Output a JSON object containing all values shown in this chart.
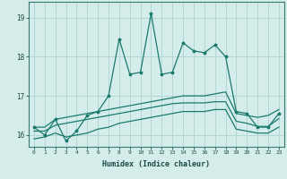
{
  "xlabel": "Humidex (Indice chaleur)",
  "background_color": "#d4ecea",
  "grid_color": "#b2d8d4",
  "line_color": "#1a7a6e",
  "xlim": [
    -0.5,
    23.5
  ],
  "ylim": [
    15.7,
    19.4
  ],
  "yticks": [
    16,
    17,
    18,
    19
  ],
  "xticks": [
    0,
    1,
    2,
    3,
    4,
    5,
    6,
    7,
    8,
    9,
    10,
    11,
    12,
    13,
    14,
    15,
    16,
    17,
    18,
    19,
    20,
    21,
    22,
    23
  ],
  "series": {
    "main": {
      "x": [
        0,
        1,
        2,
        3,
        4,
        5,
        6,
        7,
        8,
        9,
        10,
        11,
        12,
        13,
        14,
        15,
        16,
        17,
        18,
        19,
        20,
        21,
        22,
        23
      ],
      "y": [
        16.2,
        16.0,
        16.4,
        15.85,
        16.1,
        16.5,
        16.6,
        17.0,
        18.45,
        17.55,
        17.6,
        19.1,
        17.55,
        17.6,
        18.35,
        18.15,
        18.1,
        18.3,
        18.0,
        16.6,
        16.55,
        16.2,
        16.2,
        16.55
      ]
    },
    "upper": {
      "x": [
        0,
        1,
        2,
        3,
        4,
        5,
        6,
        7,
        8,
        9,
        10,
        11,
        12,
        13,
        14,
        15,
        16,
        17,
        18,
        19,
        20,
        21,
        22,
        23
      ],
      "y": [
        16.2,
        16.2,
        16.4,
        16.45,
        16.5,
        16.55,
        16.6,
        16.65,
        16.7,
        16.75,
        16.8,
        16.85,
        16.9,
        16.95,
        17.0,
        17.0,
        17.0,
        17.05,
        17.1,
        16.55,
        16.5,
        16.45,
        16.5,
        16.65
      ]
    },
    "middle": {
      "x": [
        0,
        1,
        2,
        3,
        4,
        5,
        6,
        7,
        8,
        9,
        10,
        11,
        12,
        13,
        14,
        15,
        16,
        17,
        18,
        19,
        20,
        21,
        22,
        23
      ],
      "y": [
        16.1,
        16.1,
        16.25,
        16.3,
        16.35,
        16.4,
        16.45,
        16.5,
        16.55,
        16.6,
        16.65,
        16.7,
        16.75,
        16.8,
        16.82,
        16.82,
        16.82,
        16.85,
        16.85,
        16.35,
        16.3,
        16.22,
        16.22,
        16.42
      ]
    },
    "lower": {
      "x": [
        0,
        1,
        2,
        3,
        4,
        5,
        6,
        7,
        8,
        9,
        10,
        11,
        12,
        13,
        14,
        15,
        16,
        17,
        18,
        19,
        20,
        21,
        22,
        23
      ],
      "y": [
        15.9,
        15.95,
        16.05,
        15.95,
        16.0,
        16.05,
        16.15,
        16.2,
        16.3,
        16.35,
        16.4,
        16.45,
        16.5,
        16.55,
        16.6,
        16.6,
        16.6,
        16.65,
        16.65,
        16.15,
        16.1,
        16.05,
        16.05,
        16.2
      ]
    }
  }
}
